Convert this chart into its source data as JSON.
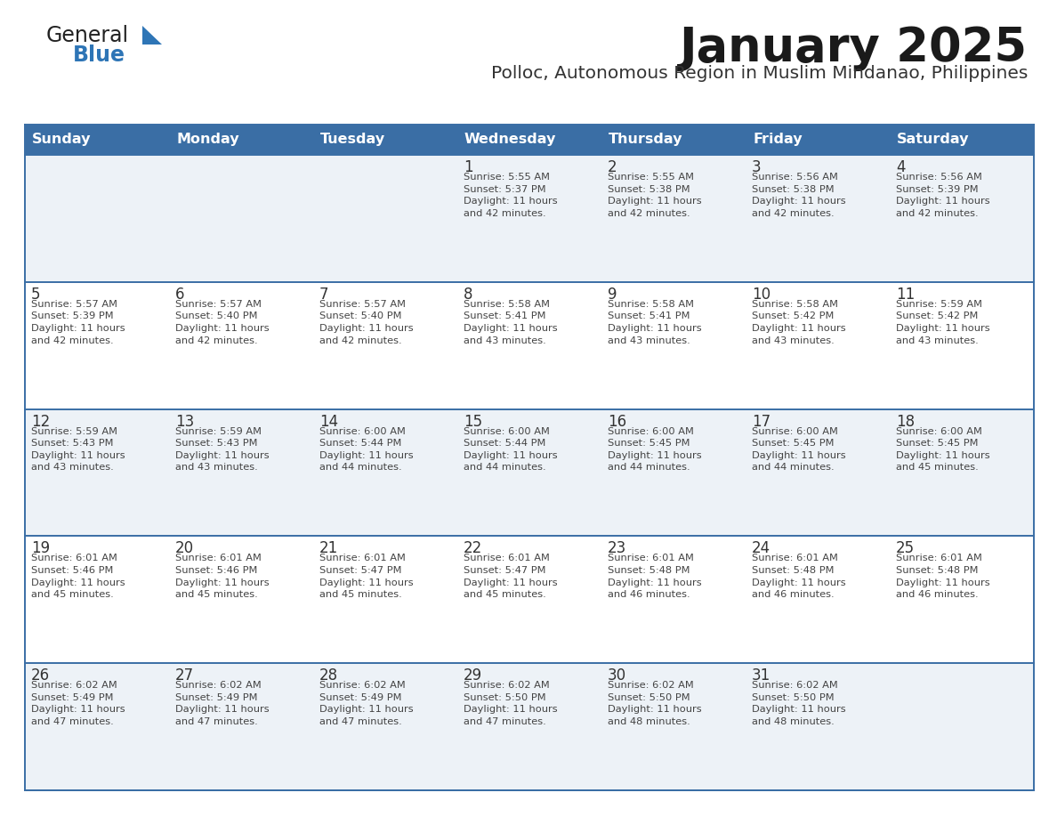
{
  "title": "January 2025",
  "subtitle": "Polloc, Autonomous Region in Muslim Mindanao, Philippines",
  "header_bg": "#3a6ea5",
  "header_text_color": "#ffffff",
  "day_names": [
    "Sunday",
    "Monday",
    "Tuesday",
    "Wednesday",
    "Thursday",
    "Friday",
    "Saturday"
  ],
  "cell_bg_even": "#edf2f7",
  "cell_bg_odd": "#ffffff",
  "row_line_color": "#3a6ea5",
  "day_num_color": "#333333",
  "info_color": "#444444",
  "title_color": "#1a1a1a",
  "subtitle_color": "#333333",
  "logo_general_color": "#222222",
  "logo_blue_color": "#2e75b6",
  "logo_triangle_color": "#2e75b6",
  "calendar": [
    [
      {
        "day": "",
        "info": ""
      },
      {
        "day": "",
        "info": ""
      },
      {
        "day": "",
        "info": ""
      },
      {
        "day": "1",
        "info": "Sunrise: 5:55 AM\nSunset: 5:37 PM\nDaylight: 11 hours\nand 42 minutes."
      },
      {
        "day": "2",
        "info": "Sunrise: 5:55 AM\nSunset: 5:38 PM\nDaylight: 11 hours\nand 42 minutes."
      },
      {
        "day": "3",
        "info": "Sunrise: 5:56 AM\nSunset: 5:38 PM\nDaylight: 11 hours\nand 42 minutes."
      },
      {
        "day": "4",
        "info": "Sunrise: 5:56 AM\nSunset: 5:39 PM\nDaylight: 11 hours\nand 42 minutes."
      }
    ],
    [
      {
        "day": "5",
        "info": "Sunrise: 5:57 AM\nSunset: 5:39 PM\nDaylight: 11 hours\nand 42 minutes."
      },
      {
        "day": "6",
        "info": "Sunrise: 5:57 AM\nSunset: 5:40 PM\nDaylight: 11 hours\nand 42 minutes."
      },
      {
        "day": "7",
        "info": "Sunrise: 5:57 AM\nSunset: 5:40 PM\nDaylight: 11 hours\nand 42 minutes."
      },
      {
        "day": "8",
        "info": "Sunrise: 5:58 AM\nSunset: 5:41 PM\nDaylight: 11 hours\nand 43 minutes."
      },
      {
        "day": "9",
        "info": "Sunrise: 5:58 AM\nSunset: 5:41 PM\nDaylight: 11 hours\nand 43 minutes."
      },
      {
        "day": "10",
        "info": "Sunrise: 5:58 AM\nSunset: 5:42 PM\nDaylight: 11 hours\nand 43 minutes."
      },
      {
        "day": "11",
        "info": "Sunrise: 5:59 AM\nSunset: 5:42 PM\nDaylight: 11 hours\nand 43 minutes."
      }
    ],
    [
      {
        "day": "12",
        "info": "Sunrise: 5:59 AM\nSunset: 5:43 PM\nDaylight: 11 hours\nand 43 minutes."
      },
      {
        "day": "13",
        "info": "Sunrise: 5:59 AM\nSunset: 5:43 PM\nDaylight: 11 hours\nand 43 minutes."
      },
      {
        "day": "14",
        "info": "Sunrise: 6:00 AM\nSunset: 5:44 PM\nDaylight: 11 hours\nand 44 minutes."
      },
      {
        "day": "15",
        "info": "Sunrise: 6:00 AM\nSunset: 5:44 PM\nDaylight: 11 hours\nand 44 minutes."
      },
      {
        "day": "16",
        "info": "Sunrise: 6:00 AM\nSunset: 5:45 PM\nDaylight: 11 hours\nand 44 minutes."
      },
      {
        "day": "17",
        "info": "Sunrise: 6:00 AM\nSunset: 5:45 PM\nDaylight: 11 hours\nand 44 minutes."
      },
      {
        "day": "18",
        "info": "Sunrise: 6:00 AM\nSunset: 5:45 PM\nDaylight: 11 hours\nand 45 minutes."
      }
    ],
    [
      {
        "day": "19",
        "info": "Sunrise: 6:01 AM\nSunset: 5:46 PM\nDaylight: 11 hours\nand 45 minutes."
      },
      {
        "day": "20",
        "info": "Sunrise: 6:01 AM\nSunset: 5:46 PM\nDaylight: 11 hours\nand 45 minutes."
      },
      {
        "day": "21",
        "info": "Sunrise: 6:01 AM\nSunset: 5:47 PM\nDaylight: 11 hours\nand 45 minutes."
      },
      {
        "day": "22",
        "info": "Sunrise: 6:01 AM\nSunset: 5:47 PM\nDaylight: 11 hours\nand 45 minutes."
      },
      {
        "day": "23",
        "info": "Sunrise: 6:01 AM\nSunset: 5:48 PM\nDaylight: 11 hours\nand 46 minutes."
      },
      {
        "day": "24",
        "info": "Sunrise: 6:01 AM\nSunset: 5:48 PM\nDaylight: 11 hours\nand 46 minutes."
      },
      {
        "day": "25",
        "info": "Sunrise: 6:01 AM\nSunset: 5:48 PM\nDaylight: 11 hours\nand 46 minutes."
      }
    ],
    [
      {
        "day": "26",
        "info": "Sunrise: 6:02 AM\nSunset: 5:49 PM\nDaylight: 11 hours\nand 47 minutes."
      },
      {
        "day": "27",
        "info": "Sunrise: 6:02 AM\nSunset: 5:49 PM\nDaylight: 11 hours\nand 47 minutes."
      },
      {
        "day": "28",
        "info": "Sunrise: 6:02 AM\nSunset: 5:49 PM\nDaylight: 11 hours\nand 47 minutes."
      },
      {
        "day": "29",
        "info": "Sunrise: 6:02 AM\nSunset: 5:50 PM\nDaylight: 11 hours\nand 47 minutes."
      },
      {
        "day": "30",
        "info": "Sunrise: 6:02 AM\nSunset: 5:50 PM\nDaylight: 11 hours\nand 48 minutes."
      },
      {
        "day": "31",
        "info": "Sunrise: 6:02 AM\nSunset: 5:50 PM\nDaylight: 11 hours\nand 48 minutes."
      },
      {
        "day": "",
        "info": ""
      }
    ]
  ]
}
